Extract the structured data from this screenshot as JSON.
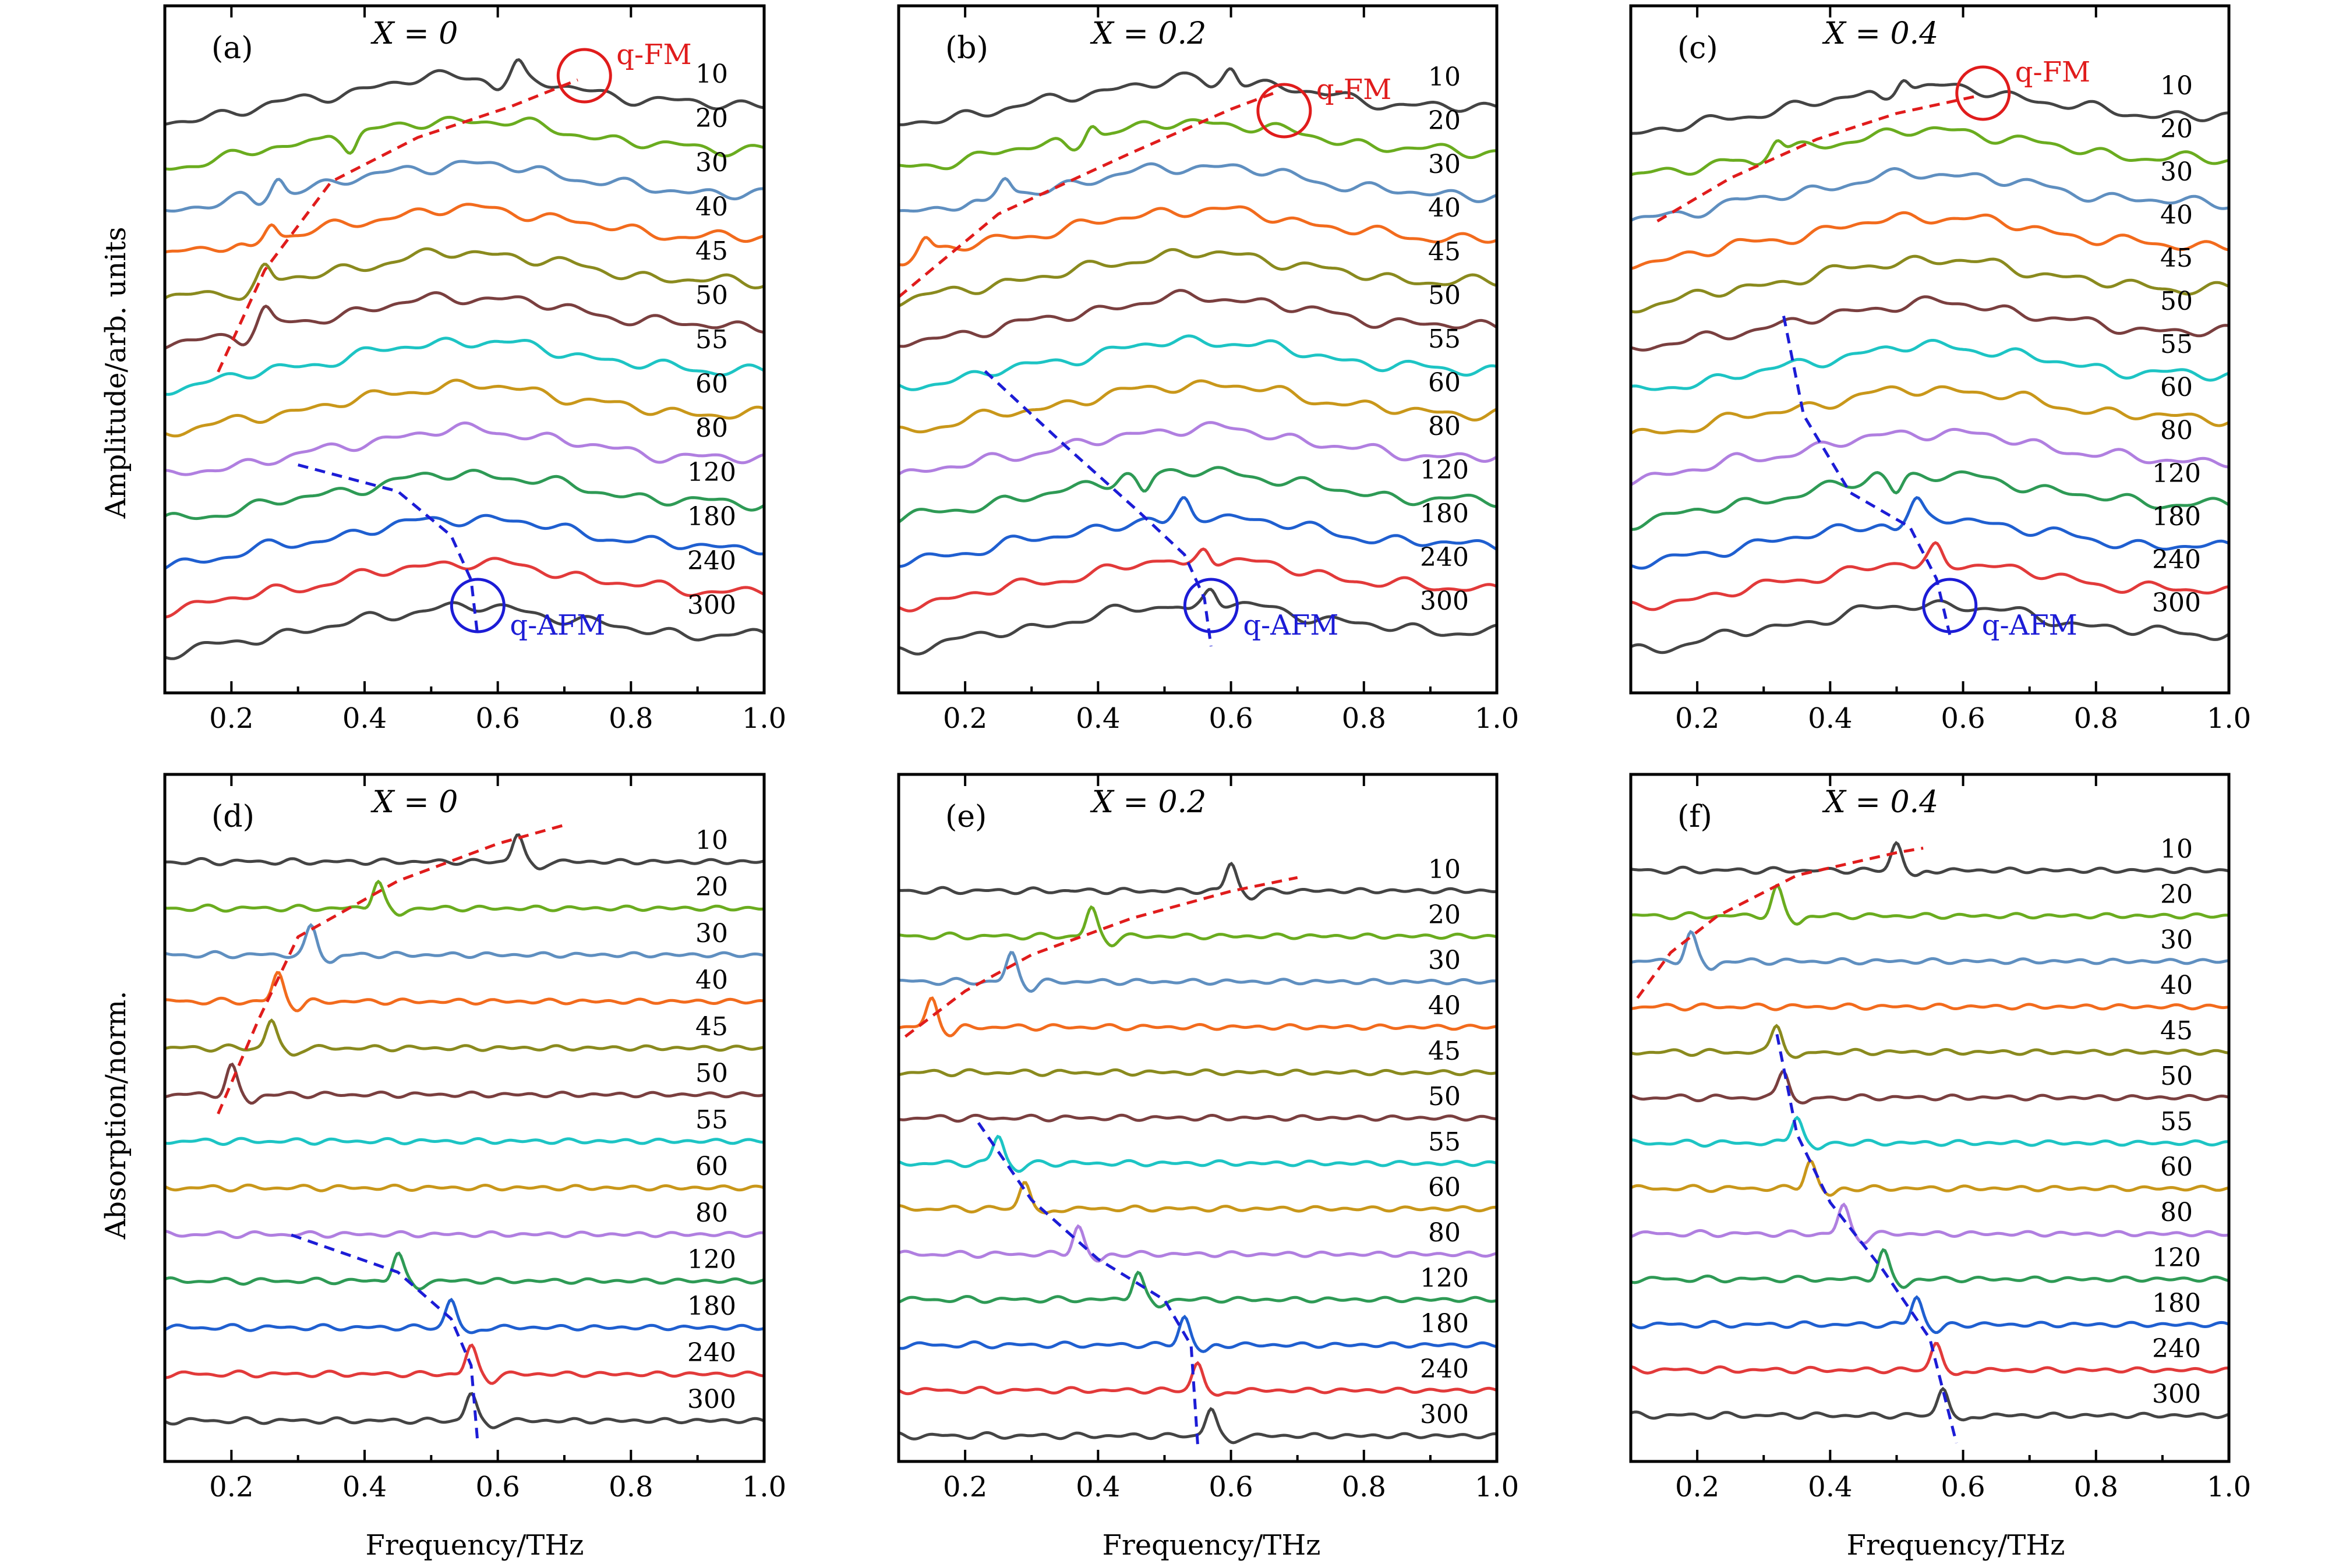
{
  "figure": {
    "ylabel_top": "Amplitude/arb. units",
    "ylabel_bottom": "Absorption/norm.",
    "xlabel": "Frequency/THz"
  },
  "colors": {
    "10": "#444444",
    "20": "#6aac1f",
    "30": "#5f8fc0",
    "40": "#f26b1d",
    "45": "#8a8a1e",
    "50": "#7a3f3f",
    "55": "#1dc4c4",
    "60": "#c9971a",
    "80": "#b07fe0",
    "120": "#2e9a55",
    "180": "#1f5fd0",
    "240": "#e23a3a",
    "300": "#444444",
    "fm": "#e01c1c",
    "afm": "#1c1cd6"
  },
  "chart_data": [
    {
      "panel": "(a)",
      "type": "line",
      "title": "X = 0",
      "xlim": [
        0.1,
        1.0
      ],
      "xticks": [
        "0.2",
        "0.4",
        "0.6",
        "0.8",
        "1.0"
      ],
      "temperatures": [
        "10",
        "20",
        "30",
        "40",
        "45",
        "50",
        "55",
        "60",
        "80",
        "120",
        "180",
        "240",
        "300"
      ],
      "annotations": [
        {
          "text": "q-FM",
          "color": "fm",
          "circle_x": 0.73,
          "row": 0
        },
        {
          "text": "q-AFM",
          "color": "afm",
          "circle_x": 0.57,
          "row": 12
        }
      ],
      "fm_curve": [
        [
          0.18,
          6.3
        ],
        [
          0.25,
          4.0
        ],
        [
          0.35,
          2.0
        ],
        [
          0.48,
          1.0
        ],
        [
          0.62,
          0.3
        ],
        [
          0.72,
          -0.3
        ]
      ],
      "afm_curve": [
        [
          0.3,
          8.4
        ],
        [
          0.45,
          9.0
        ],
        [
          0.53,
          10.0
        ],
        [
          0.56,
          11.0
        ],
        [
          0.57,
          12.3
        ]
      ],
      "features": [
        {
          "row": 0,
          "x": 0.63,
          "dir": -1
        },
        {
          "row": 1,
          "x": 0.38,
          "dir": 1
        },
        {
          "row": 2,
          "x": 0.27,
          "dir": -1
        },
        {
          "row": 3,
          "x": 0.26,
          "dir": -1
        },
        {
          "row": 4,
          "x": 0.25,
          "dir": -1
        },
        {
          "row": 5,
          "x": 0.25,
          "dir": -1
        }
      ]
    },
    {
      "panel": "(b)",
      "type": "line",
      "title": "X = 0.2",
      "xlim": [
        0.1,
        1.0
      ],
      "xticks": [
        "0.2",
        "0.4",
        "0.6",
        "0.8",
        "1.0"
      ],
      "temperatures": [
        "10",
        "20",
        "30",
        "40",
        "45",
        "50",
        "55",
        "60",
        "80",
        "120",
        "180",
        "240",
        "300"
      ],
      "annotations": [
        {
          "text": "q-FM",
          "color": "fm",
          "circle_x": 0.68,
          "row": 0
        },
        {
          "text": "q-AFM",
          "color": "afm",
          "circle_x": 0.57,
          "row": 12
        }
      ],
      "fm_curve": [
        [
          0.1,
          4.6
        ],
        [
          0.25,
          2.7
        ],
        [
          0.45,
          1.3
        ],
        [
          0.6,
          0.3
        ],
        [
          0.67,
          -0.1
        ]
      ],
      "afm_curve": [
        [
          0.23,
          6.3
        ],
        [
          0.35,
          8.0
        ],
        [
          0.46,
          9.5
        ],
        [
          0.53,
          10.5
        ],
        [
          0.56,
          11.5
        ],
        [
          0.57,
          12.6
        ]
      ],
      "features": [
        {
          "row": 0,
          "x": 0.6,
          "dir": -1
        },
        {
          "row": 1,
          "x": 0.39,
          "dir": -1
        },
        {
          "row": 2,
          "x": 0.26,
          "dir": -1
        },
        {
          "row": 3,
          "x": 0.14,
          "dir": -1
        },
        {
          "row": 9,
          "x": 0.47,
          "dir": 1
        },
        {
          "row": 10,
          "x": 0.53,
          "dir": -1
        },
        {
          "row": 11,
          "x": 0.56,
          "dir": -1
        },
        {
          "row": 12,
          "x": 0.57,
          "dir": -1
        }
      ]
    },
    {
      "panel": "(c)",
      "type": "line",
      "title": "X = 0.4",
      "xlim": [
        0.1,
        1.0
      ],
      "xticks": [
        "0.2",
        "0.4",
        "0.6",
        "0.8",
        "1.0"
      ],
      "temperatures": [
        "10",
        "20",
        "30",
        "40",
        "45",
        "50",
        "55",
        "60",
        "80",
        "120",
        "180",
        "240",
        "300"
      ],
      "annotations": [
        {
          "text": "q-FM",
          "color": "fm",
          "circle_x": 0.63,
          "row": 0
        },
        {
          "text": "q-AFM",
          "color": "afm",
          "circle_x": 0.58,
          "row": 12
        }
      ],
      "fm_curve": [
        [
          0.14,
          2.7
        ],
        [
          0.25,
          1.7
        ],
        [
          0.38,
          0.8
        ],
        [
          0.5,
          0.2
        ],
        [
          0.62,
          -0.2
        ]
      ],
      "afm_curve": [
        [
          0.33,
          4.9
        ],
        [
          0.36,
          7.2
        ],
        [
          0.43,
          9.0
        ],
        [
          0.52,
          9.8
        ],
        [
          0.56,
          11.0
        ],
        [
          0.58,
          12.3
        ]
      ],
      "features": [
        {
          "row": 0,
          "x": 0.51,
          "dir": -1
        },
        {
          "row": 1,
          "x": 0.32,
          "dir": -1
        },
        {
          "row": 9,
          "x": 0.5,
          "dir": 1
        },
        {
          "row": 10,
          "x": 0.53,
          "dir": -1
        },
        {
          "row": 11,
          "x": 0.56,
          "dir": -1
        }
      ]
    },
    {
      "panel": "(d)",
      "type": "line",
      "title": "X = 0",
      "xlim": [
        0.1,
        1.0
      ],
      "xticks": [
        "0.2",
        "0.4",
        "0.6",
        "0.8",
        "1.0"
      ],
      "temperatures": [
        "10",
        "20",
        "30",
        "40",
        "45",
        "50",
        "55",
        "60",
        "80",
        "120",
        "180",
        "240",
        "300"
      ],
      "annotations": [],
      "fm_curve": [
        [
          0.18,
          5.6
        ],
        [
          0.24,
          3.6
        ],
        [
          0.3,
          1.8
        ],
        [
          0.45,
          0.6
        ],
        [
          0.6,
          -0.2
        ],
        [
          0.7,
          -0.6
        ]
      ],
      "afm_curve": [
        [
          0.29,
          8.2
        ],
        [
          0.45,
          9.0
        ],
        [
          0.53,
          10.0
        ],
        [
          0.56,
          11.0
        ],
        [
          0.57,
          12.7
        ]
      ],
      "peaks": [
        {
          "row": 0,
          "x": 0.63
        },
        {
          "row": 1,
          "x": 0.42
        },
        {
          "row": 2,
          "x": 0.32
        },
        {
          "row": 3,
          "x": 0.27
        },
        {
          "row": 4,
          "x": 0.26
        },
        {
          "row": 5,
          "x": 0.2
        },
        {
          "row": 9,
          "x": 0.45
        },
        {
          "row": 10,
          "x": 0.53
        },
        {
          "row": 11,
          "x": 0.56
        },
        {
          "row": 12,
          "x": 0.56
        }
      ]
    },
    {
      "panel": "(e)",
      "type": "line",
      "title": "X = 0.2",
      "xlim": [
        0.1,
        1.0
      ],
      "xticks": [
        "0.2",
        "0.4",
        "0.6",
        "0.8",
        "1.0"
      ],
      "temperatures": [
        "10",
        "20",
        "30",
        "40",
        "45",
        "50",
        "55",
        "60",
        "80",
        "120",
        "180",
        "240",
        "300"
      ],
      "annotations": [],
      "fm_curve": [
        [
          0.11,
          3.4
        ],
        [
          0.2,
          2.4
        ],
        [
          0.3,
          1.6
        ],
        [
          0.45,
          0.8
        ],
        [
          0.6,
          0.2
        ],
        [
          0.7,
          -0.1
        ]
      ],
      "afm_curve": [
        [
          0.22,
          5.3
        ],
        [
          0.3,
          7.0
        ],
        [
          0.4,
          8.3
        ],
        [
          0.5,
          9.2
        ],
        [
          0.54,
          10.2
        ],
        [
          0.55,
          12.4
        ]
      ],
      "peaks": [
        {
          "row": 0,
          "x": 0.6
        },
        {
          "row": 1,
          "x": 0.39
        },
        {
          "row": 2,
          "x": 0.27
        },
        {
          "row": 3,
          "x": 0.15
        },
        {
          "row": 6,
          "x": 0.25
        },
        {
          "row": 7,
          "x": 0.29
        },
        {
          "row": 8,
          "x": 0.37
        },
        {
          "row": 9,
          "x": 0.46
        },
        {
          "row": 10,
          "x": 0.53
        },
        {
          "row": 11,
          "x": 0.55
        },
        {
          "row": 12,
          "x": 0.57
        }
      ]
    },
    {
      "panel": "(f)",
      "type": "line",
      "title": "X = 0.4",
      "xlim": [
        0.1,
        1.0
      ],
      "xticks": [
        "0.2",
        "0.4",
        "0.6",
        "0.8",
        "1.0"
      ],
      "temperatures": [
        "10",
        "20",
        "30",
        "40",
        "45",
        "50",
        "55",
        "60",
        "80",
        "120",
        "180",
        "240",
        "300"
      ],
      "annotations": [],
      "fm_curve": [
        [
          0.11,
          3.0
        ],
        [
          0.16,
          2.0
        ],
        [
          0.23,
          1.2
        ],
        [
          0.35,
          0.3
        ],
        [
          0.5,
          -0.2
        ],
        [
          0.54,
          -0.3
        ]
      ],
      "afm_curve": [
        [
          0.32,
          3.8
        ],
        [
          0.35,
          6.0
        ],
        [
          0.4,
          7.5
        ],
        [
          0.48,
          9.0
        ],
        [
          0.55,
          10.5
        ],
        [
          0.59,
          12.8
        ]
      ],
      "peaks": [
        {
          "row": 0,
          "x": 0.5
        },
        {
          "row": 1,
          "x": 0.32
        },
        {
          "row": 2,
          "x": 0.19
        },
        {
          "row": 4,
          "x": 0.32
        },
        {
          "row": 5,
          "x": 0.33
        },
        {
          "row": 6,
          "x": 0.35
        },
        {
          "row": 7,
          "x": 0.37
        },
        {
          "row": 8,
          "x": 0.42
        },
        {
          "row": 9,
          "x": 0.48
        },
        {
          "row": 10,
          "x": 0.53
        },
        {
          "row": 11,
          "x": 0.56
        },
        {
          "row": 12,
          "x": 0.57
        }
      ]
    }
  ]
}
